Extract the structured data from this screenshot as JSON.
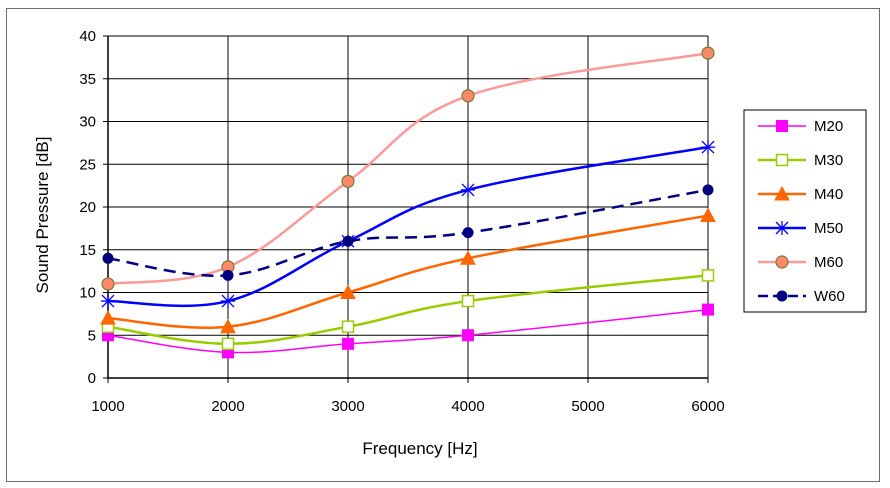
{
  "chart_data": {
    "type": "line",
    "title": "",
    "xlabel": "Frequency  [Hz]",
    "ylabel": "Sound Pressure [dB]",
    "x": [
      1000,
      2000,
      3000,
      4000,
      5000,
      6000
    ],
    "xlim": [
      1000,
      6000
    ],
    "ylim": [
      0,
      40
    ],
    "xticks": [
      "1000",
      "2000",
      "3000",
      "4000",
      "5000",
      "6000"
    ],
    "yticks": [
      "0",
      "5",
      "10",
      "15",
      "20",
      "25",
      "30",
      "35",
      "40"
    ],
    "grid": true,
    "legend_position": "right",
    "series": [
      {
        "name": "M20",
        "color": "#ff00ff",
        "marker": "square-filled",
        "dashed": false,
        "points": [
          [
            1000,
            5
          ],
          [
            2000,
            3
          ],
          [
            3000,
            4
          ],
          [
            4000,
            5
          ],
          [
            6000,
            8
          ]
        ]
      },
      {
        "name": "M30",
        "color": "#99cc00",
        "marker": "square-open",
        "dashed": false,
        "points": [
          [
            1000,
            6
          ],
          [
            2000,
            4
          ],
          [
            3000,
            6
          ],
          [
            4000,
            9
          ],
          [
            6000,
            12
          ]
        ]
      },
      {
        "name": "M40",
        "color": "#ff6600",
        "marker": "triangle",
        "dashed": false,
        "points": [
          [
            1000,
            7
          ],
          [
            2000,
            6
          ],
          [
            3000,
            10
          ],
          [
            4000,
            14
          ],
          [
            6000,
            19
          ]
        ]
      },
      {
        "name": "M50",
        "color": "#0000ff",
        "marker": "asterisk",
        "dashed": false,
        "points": [
          [
            1000,
            9
          ],
          [
            2000,
            9
          ],
          [
            3000,
            16
          ],
          [
            4000,
            22
          ],
          [
            6000,
            27
          ]
        ]
      },
      {
        "name": "M60",
        "color": "#ff9999",
        "marker": "diamond-circle",
        "dashed": false,
        "points": [
          [
            1000,
            11
          ],
          [
            2000,
            13
          ],
          [
            3000,
            23
          ],
          [
            4000,
            33
          ],
          [
            6000,
            38
          ]
        ]
      },
      {
        "name": "W60",
        "color": "#000080",
        "marker": "circle-filled",
        "dashed": true,
        "points": [
          [
            1000,
            14
          ],
          [
            2000,
            12
          ],
          [
            3000,
            16
          ],
          [
            4000,
            17
          ],
          [
            6000,
            22
          ]
        ]
      }
    ]
  }
}
